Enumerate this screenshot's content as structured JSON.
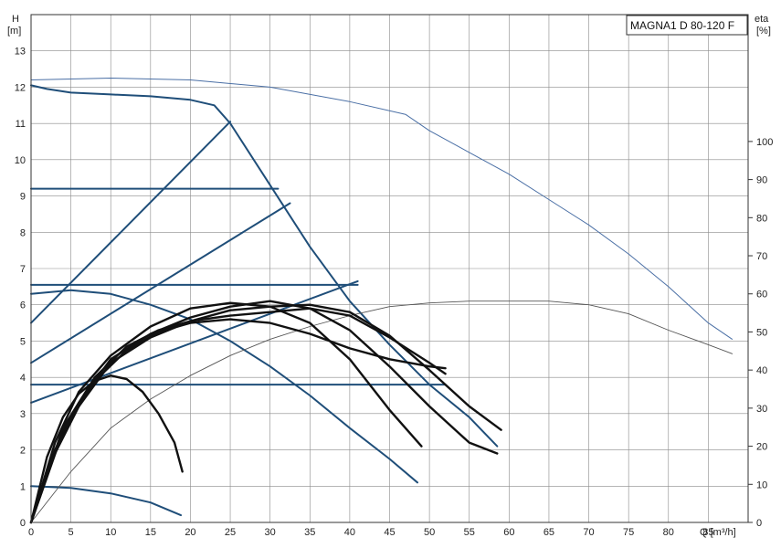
{
  "chart_data": {
    "type": "line",
    "title": "MAGNA1 D 80-120 F",
    "xlabel": "Q [m³/h]",
    "ylabel_left": {
      "line1": "H",
      "line2": "[m]"
    },
    "ylabel_right": {
      "line1": "eta",
      "line2": "[%]"
    },
    "xlim": [
      0,
      90
    ],
    "ylim_left": [
      0,
      14
    ],
    "ylim_right": [
      0,
      133.3
    ],
    "x_ticks": [
      0,
      5,
      10,
      15,
      20,
      25,
      30,
      35,
      40,
      45,
      50,
      55,
      60,
      65,
      70,
      75,
      80,
      85
    ],
    "y_ticks_left": [
      0,
      1,
      2,
      3,
      4,
      5,
      6,
      7,
      8,
      9,
      10,
      11,
      12,
      13
    ],
    "y_ticks_right": [
      0,
      10,
      20,
      30,
      40,
      50,
      60,
      70,
      80,
      90,
      100
    ],
    "grid": true,
    "colors": {
      "head_curves": "#1f4e79",
      "power_curves": "#111111",
      "efficiency": "#555555",
      "max_curve": "#4a6fa5"
    },
    "series": [
      {
        "axis": "left",
        "style": "blue",
        "points": [
          [
            0,
            12.05
          ],
          [
            2,
            11.95
          ],
          [
            5,
            11.85
          ],
          [
            10,
            11.8
          ],
          [
            15,
            11.75
          ],
          [
            20,
            11.65
          ],
          [
            23,
            11.5
          ],
          [
            25,
            11.0
          ],
          [
            30,
            9.3
          ],
          [
            35,
            7.6
          ],
          [
            40,
            6.1
          ],
          [
            45,
            4.9
          ],
          [
            50,
            3.8
          ],
          [
            55,
            2.9
          ],
          [
            58.5,
            2.1
          ]
        ]
      },
      {
        "axis": "left",
        "style": "blue",
        "points": [
          [
            0,
            3.8
          ],
          [
            52,
            3.8
          ]
        ]
      },
      {
        "axis": "left",
        "style": "blue",
        "points": [
          [
            0,
            6.55
          ],
          [
            41,
            6.55
          ]
        ]
      },
      {
        "axis": "left",
        "style": "blue",
        "points": [
          [
            0,
            9.2
          ],
          [
            31,
            9.2
          ]
        ]
      },
      {
        "axis": "left",
        "style": "blue",
        "points": [
          [
            0,
            5.5
          ],
          [
            25,
            11.05
          ]
        ]
      },
      {
        "axis": "left",
        "style": "blue",
        "points": [
          [
            0,
            4.4
          ],
          [
            32.5,
            8.8
          ]
        ]
      },
      {
        "axis": "left",
        "style": "blue",
        "points": [
          [
            0,
            3.3
          ],
          [
            41,
            6.65
          ]
        ]
      },
      {
        "axis": "left",
        "style": "blue",
        "points": [
          [
            0,
            6.3
          ],
          [
            5,
            6.4
          ],
          [
            10,
            6.3
          ],
          [
            15,
            6.0
          ],
          [
            20,
            5.6
          ],
          [
            25,
            5.0
          ],
          [
            30,
            4.3
          ],
          [
            35,
            3.5
          ],
          [
            40,
            2.6
          ],
          [
            45,
            1.75
          ],
          [
            48.5,
            1.1
          ]
        ]
      },
      {
        "axis": "left",
        "style": "blue",
        "points": [
          [
            0,
            1.0
          ],
          [
            5,
            0.95
          ],
          [
            10,
            0.8
          ],
          [
            15,
            0.55
          ],
          [
            18.8,
            0.2
          ]
        ]
      },
      {
        "axis": "left",
        "style": "max",
        "points": [
          [
            0,
            12.2
          ],
          [
            10,
            12.25
          ],
          [
            20,
            12.2
          ],
          [
            30,
            12.0
          ],
          [
            40,
            11.6
          ],
          [
            47,
            11.25
          ],
          [
            50,
            10.8
          ],
          [
            55,
            10.2
          ],
          [
            60,
            9.6
          ],
          [
            65,
            8.9
          ],
          [
            70,
            8.2
          ],
          [
            75,
            7.4
          ],
          [
            80,
            6.5
          ],
          [
            85,
            5.5
          ],
          [
            88,
            5.05
          ]
        ]
      },
      {
        "axis": "left",
        "style": "eff",
        "points": [
          [
            0,
            0
          ],
          [
            5,
            1.4
          ],
          [
            10,
            2.6
          ],
          [
            15,
            3.4
          ],
          [
            20,
            4.05
          ],
          [
            25,
            4.6
          ],
          [
            30,
            5.05
          ],
          [
            35,
            5.4
          ],
          [
            40,
            5.7
          ],
          [
            45,
            5.95
          ],
          [
            50,
            6.05
          ],
          [
            55,
            6.1
          ],
          [
            60,
            6.1
          ],
          [
            65,
            6.1
          ],
          [
            70,
            6.0
          ],
          [
            75,
            5.75
          ],
          [
            80,
            5.3
          ],
          [
            85,
            4.9
          ],
          [
            88,
            4.65
          ]
        ]
      },
      {
        "axis": "left",
        "style": "black",
        "points": [
          [
            0,
            0
          ],
          [
            2,
            1.8
          ],
          [
            4,
            2.9
          ],
          [
            6,
            3.55
          ],
          [
            8,
            3.9
          ],
          [
            10,
            4.05
          ],
          [
            12,
            3.95
          ],
          [
            14,
            3.6
          ],
          [
            16,
            3.0
          ],
          [
            18,
            2.2
          ],
          [
            19,
            1.4
          ]
        ]
      },
      {
        "axis": "left",
        "style": "black",
        "points": [
          [
            0,
            0
          ],
          [
            3,
            2.2
          ],
          [
            6,
            3.6
          ],
          [
            10,
            4.6
          ],
          [
            15,
            5.4
          ],
          [
            20,
            5.9
          ],
          [
            25,
            6.05
          ],
          [
            30,
            5.95
          ],
          [
            35,
            5.5
          ],
          [
            40,
            4.5
          ],
          [
            45,
            3.1
          ],
          [
            49,
            2.1
          ]
        ]
      },
      {
        "axis": "left",
        "style": "black",
        "points": [
          [
            0,
            0
          ],
          [
            3,
            2.0
          ],
          [
            6,
            3.3
          ],
          [
            10,
            4.5
          ],
          [
            15,
            5.2
          ],
          [
            20,
            5.65
          ],
          [
            25,
            5.95
          ],
          [
            30,
            6.1
          ],
          [
            35,
            5.9
          ],
          [
            40,
            5.3
          ],
          [
            45,
            4.3
          ],
          [
            50,
            3.2
          ],
          [
            55,
            2.2
          ],
          [
            58.5,
            1.9
          ]
        ]
      },
      {
        "axis": "left",
        "style": "black",
        "points": [
          [
            0,
            0
          ],
          [
            3,
            1.9
          ],
          [
            6,
            3.2
          ],
          [
            10,
            4.4
          ],
          [
            15,
            5.1
          ],
          [
            20,
            5.55
          ],
          [
            25,
            5.85
          ],
          [
            30,
            5.95
          ],
          [
            35,
            6.0
          ],
          [
            40,
            5.8
          ],
          [
            45,
            5.15
          ],
          [
            50,
            4.2
          ],
          [
            55,
            3.2
          ],
          [
            59,
            2.55
          ]
        ]
      },
      {
        "axis": "left",
        "style": "black",
        "points": [
          [
            0,
            0
          ],
          [
            4,
            2.5
          ],
          [
            8,
            3.9
          ],
          [
            12,
            4.75
          ],
          [
            16,
            5.25
          ],
          [
            20,
            5.5
          ],
          [
            25,
            5.6
          ],
          [
            30,
            5.5
          ],
          [
            35,
            5.2
          ],
          [
            40,
            4.8
          ],
          [
            45,
            4.5
          ],
          [
            50,
            4.3
          ],
          [
            52,
            4.25
          ]
        ]
      },
      {
        "axis": "left",
        "style": "black",
        "points": [
          [
            0,
            0
          ],
          [
            4,
            2.6
          ],
          [
            8,
            4.0
          ],
          [
            12,
            4.85
          ],
          [
            16,
            5.3
          ],
          [
            20,
            5.55
          ],
          [
            25,
            5.7
          ],
          [
            30,
            5.8
          ],
          [
            35,
            5.9
          ],
          [
            40,
            5.7
          ],
          [
            45,
            5.1
          ],
          [
            50,
            4.4
          ],
          [
            52,
            4.1
          ]
        ]
      }
    ]
  }
}
